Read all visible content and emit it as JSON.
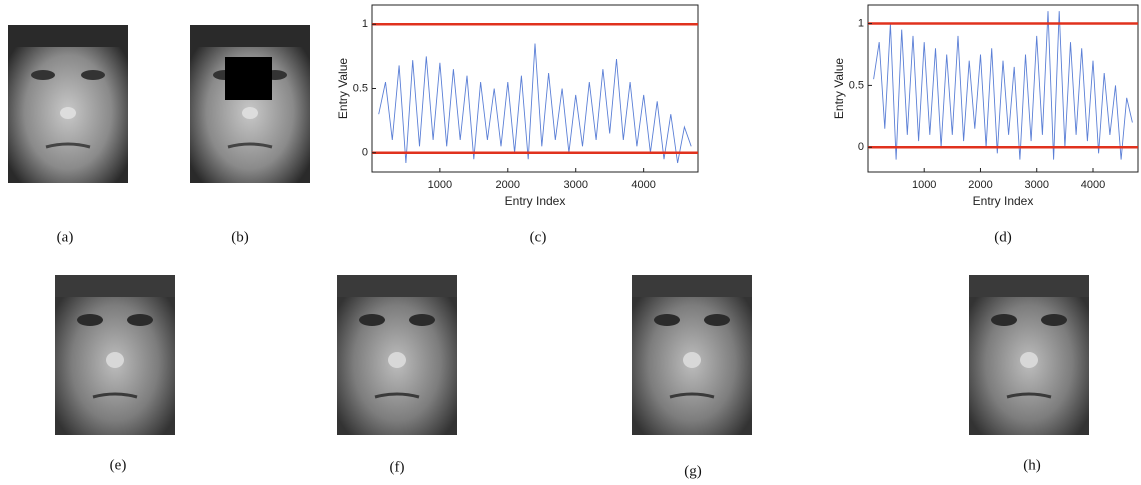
{
  "panels": {
    "labels": [
      "(a)",
      "(b)",
      "(c)",
      "(d)",
      "(e)",
      "(f)",
      "(g)",
      "(h)"
    ]
  },
  "chart_data": [
    {
      "type": "line",
      "x_label": "Entry Index",
      "y_label": "Entry Value",
      "color": "#5b7fd6",
      "x": [
        100,
        200,
        300,
        400,
        500,
        600,
        700,
        800,
        900,
        1000,
        1100,
        1200,
        1300,
        1400,
        1500,
        1600,
        1700,
        1800,
        1900,
        2000,
        2100,
        2200,
        2300,
        2400,
        2500,
        2600,
        2700,
        2800,
        2900,
        3000,
        3100,
        3200,
        3300,
        3400,
        3500,
        3600,
        3700,
        3800,
        3900,
        4000,
        4100,
        4200,
        4300,
        4400,
        4500,
        4600,
        4700
      ],
      "values": [
        0.3,
        0.55,
        0.1,
        0.68,
        -0.08,
        0.72,
        0.05,
        0.75,
        0.1,
        0.7,
        0.05,
        0.65,
        0.1,
        0.6,
        -0.05,
        0.55,
        0.1,
        0.5,
        0.05,
        0.55,
        0.0,
        0.6,
        -0.05,
        0.85,
        0.05,
        0.62,
        0.1,
        0.5,
        0.0,
        0.45,
        0.05,
        0.55,
        0.1,
        0.65,
        0.15,
        0.73,
        0.1,
        0.55,
        0.05,
        0.45,
        0.0,
        0.4,
        -0.05,
        0.3,
        -0.08,
        0.2,
        0.05
      ],
      "hlines": {
        "values": [
          0,
          1
        ],
        "color": "#e0321e"
      },
      "xlim": [
        1,
        4800
      ],
      "xticks": [
        1000,
        2000,
        3000,
        4000
      ],
      "ylim": [
        -0.15,
        1.15
      ],
      "yticks": [
        0,
        0.5,
        1
      ]
    },
    {
      "type": "line",
      "x_label": "Entry Index",
      "y_label": "Entry Value",
      "color": "#5b7fd6",
      "x": [
        100,
        200,
        300,
        400,
        500,
        600,
        700,
        800,
        900,
        1000,
        1100,
        1200,
        1300,
        1400,
        1500,
        1600,
        1700,
        1800,
        1900,
        2000,
        2100,
        2200,
        2300,
        2400,
        2500,
        2600,
        2700,
        2800,
        2900,
        3000,
        3100,
        3200,
        3300,
        3400,
        3500,
        3600,
        3700,
        3800,
        3900,
        4000,
        4100,
        4200,
        4300,
        4400,
        4500,
        4600,
        4700
      ],
      "values": [
        0.55,
        0.85,
        0.15,
        1.0,
        -0.1,
        0.95,
        0.1,
        0.9,
        0.05,
        0.85,
        0.1,
        0.8,
        0.0,
        0.75,
        0.1,
        0.9,
        0.05,
        0.7,
        0.15,
        0.75,
        0.0,
        0.8,
        -0.05,
        0.7,
        0.1,
        0.65,
        -0.1,
        0.75,
        0.05,
        0.9,
        0.1,
        1.1,
        -0.1,
        1.1,
        0.0,
        0.85,
        0.1,
        0.8,
        0.05,
        0.7,
        -0.05,
        0.6,
        0.1,
        0.5,
        -0.1,
        0.4,
        0.2
      ],
      "hlines": {
        "values": [
          0,
          1
        ],
        "color": "#e0321e"
      },
      "xlim": [
        1,
        4800
      ],
      "xticks": [
        1000,
        2000,
        3000,
        4000
      ],
      "ylim": [
        -0.2,
        1.15
      ],
      "yticks": [
        0,
        0.5,
        1
      ]
    }
  ]
}
